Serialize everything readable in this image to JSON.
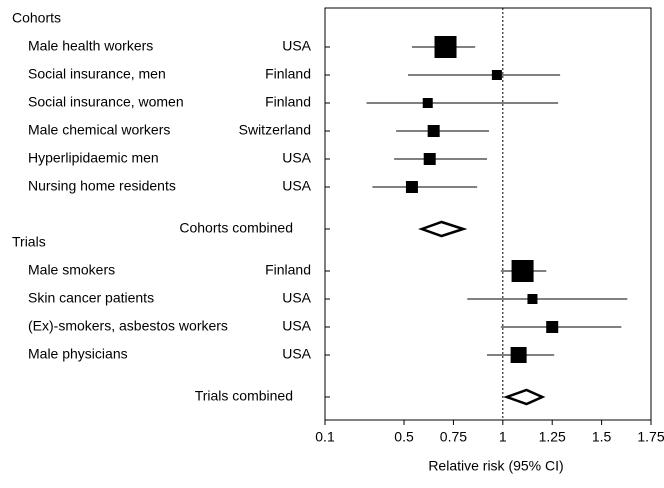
{
  "chart_data": {
    "type": "forest",
    "xlabel": "Relative risk (95% CI)",
    "xlim": [
      0.1,
      1.75
    ],
    "xticks": [
      0.1,
      0.5,
      0.75,
      1,
      1.25,
      1.5,
      1.75
    ],
    "ref_line": 1,
    "color": "#000000",
    "groups": [
      {
        "name": "Cohorts",
        "studies": [
          {
            "name": "Male health workers",
            "country": "USA",
            "estimate": 0.71,
            "lower": 0.54,
            "upper": 0.86,
            "weight": 22
          },
          {
            "name": "Social insurance, men",
            "country": "Finland",
            "estimate": 0.97,
            "lower": 0.52,
            "upper": 1.29,
            "weight": 10
          },
          {
            "name": "Social insurance, women",
            "country": "Finland",
            "estimate": 0.62,
            "lower": 0.31,
            "upper": 1.28,
            "weight": 10
          },
          {
            "name": "Male chemical workers",
            "country": "Switzerland",
            "estimate": 0.65,
            "lower": 0.46,
            "upper": 0.93,
            "weight": 12
          },
          {
            "name": "Hyperlipidaemic men",
            "country": "USA",
            "estimate": 0.63,
            "lower": 0.45,
            "upper": 0.92,
            "weight": 12
          },
          {
            "name": "Nursing home residents",
            "country": "USA",
            "estimate": 0.54,
            "lower": 0.34,
            "upper": 0.87,
            "weight": 12
          }
        ],
        "combined": {
          "label": "Cohorts combined",
          "estimate": 0.69,
          "lower": 0.59,
          "upper": 0.8
        }
      },
      {
        "name": "Trials",
        "studies": [
          {
            "name": "Male smokers",
            "country": "Finland",
            "estimate": 1.1,
            "lower": 0.99,
            "upper": 1.22,
            "weight": 22
          },
          {
            "name": "Skin cancer patients",
            "country": "USA",
            "estimate": 1.15,
            "lower": 0.82,
            "upper": 1.63,
            "weight": 10
          },
          {
            "name": "(Ex)-smokers, asbestos workers",
            "country": "USA",
            "estimate": 1.25,
            "lower": 0.99,
            "upper": 1.6,
            "weight": 12
          },
          {
            "name": "Male physicians",
            "country": "USA",
            "estimate": 1.08,
            "lower": 0.92,
            "upper": 1.26,
            "weight": 16
          }
        ],
        "combined": {
          "label": "Trials combined",
          "estimate": 1.12,
          "lower": 1.02,
          "upper": 1.2
        }
      }
    ]
  }
}
